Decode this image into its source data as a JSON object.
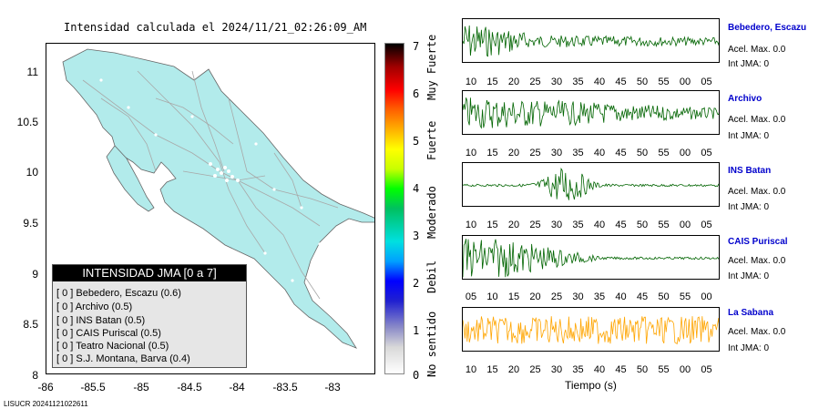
{
  "map": {
    "title": "Intensidad calculada el 2024/11/21_02:26:09_AM",
    "yticks": [
      "11",
      "10.5",
      "10",
      "9.5",
      "9",
      "8.5",
      "8"
    ],
    "xticks": [
      "-86",
      "-85.5",
      "-85",
      "-84.5",
      "-84",
      "-83.5",
      "-83"
    ]
  },
  "legend": {
    "header": "INTENSIDAD JMA [0 a 7]",
    "items": [
      "[ 0 ]  Bebedero, Escazu (0.6)",
      "[ 0 ]  Archivo (0.5)",
      "[ 0 ]  INS Batan (0.5)",
      "[ 0 ]  CAIS Puriscal (0.5)",
      "[ 0 ]  Teatro Nacional (0.5)",
      "[ 0 ]  S.J. Montana, Barva (0.4)"
    ]
  },
  "scale": {
    "numbers": [
      "7",
      "6",
      "5",
      "4",
      "3",
      "2",
      "1",
      "0"
    ],
    "labels": [
      "Muy Fuerte",
      "Fuerte",
      "Moderado",
      "Debil",
      "No sentido"
    ]
  },
  "stations": [
    {
      "name": "Bebedero, Escazu",
      "acel": "Acel. Max. 0.0",
      "int": "Int JMA: 0",
      "color": "#006400",
      "ticks": [
        "10",
        "15",
        "20",
        "25",
        "30",
        "35",
        "40",
        "45",
        "50",
        "55",
        "00",
        "05"
      ]
    },
    {
      "name": "Archivo",
      "acel": "Acel. Max. 0.0",
      "int": "Int JMA: 0",
      "color": "#006400",
      "ticks": [
        "10",
        "15",
        "20",
        "25",
        "30",
        "35",
        "40",
        "45",
        "50",
        "55",
        "00",
        "05"
      ]
    },
    {
      "name": "INS Batan",
      "acel": "Acel. Max. 0.0",
      "int": "Int JMA: 0",
      "color": "#006400",
      "ticks": [
        "10",
        "15",
        "20",
        "25",
        "30",
        "35",
        "40",
        "45",
        "50",
        "55",
        "00",
        "05"
      ]
    },
    {
      "name": "CAIS Puriscal",
      "acel": "Acel. Max. 0.0",
      "int": "Int JMA: 0",
      "color": "#006400",
      "ticks": [
        "05",
        "10",
        "15",
        "20",
        "25",
        "30",
        "35",
        "40",
        "45",
        "50",
        "55",
        "00"
      ]
    },
    {
      "name": "La Sabana",
      "acel": "Acel. Max. 0.0",
      "int": "Int JMA: 0",
      "color": "#ffa500",
      "ticks": [
        "10",
        "15",
        "20",
        "25",
        "30",
        "35",
        "40",
        "45",
        "50",
        "55",
        "00",
        "05"
      ]
    }
  ],
  "xlabel": "Tiempo (s)",
  "footer": "LISUCR 20241121022611"
}
